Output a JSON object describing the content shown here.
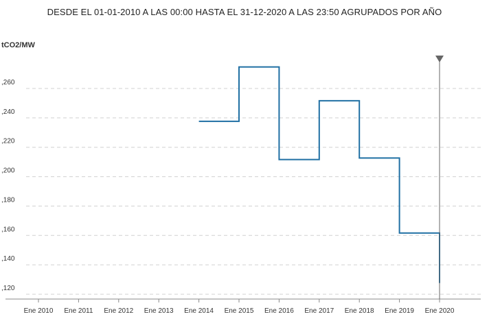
{
  "header": {
    "title": "DESDE EL 01-01-2010 A LAS 00:00 HASTA EL 31-12-2020 A LAS 23:50 AGRUPADOS POR AÑO"
  },
  "chart_data": {
    "type": "line",
    "step": true,
    "title": "DESDE EL 01-01-2010 A LAS 00:00 HASTA EL 31-12-2020 A LAS 23:50 AGRUPADOS POR AÑO",
    "ylabel": "tCO2/MW",
    "xlabel": "",
    "x": [
      "2014",
      "2015",
      "2016",
      "2017",
      "2018",
      "2019",
      "2020"
    ],
    "series": [
      {
        "values": [
          0.233,
          0.27,
          0.207,
          0.247,
          0.208,
          0.157,
          0.123
        ]
      }
    ],
    "ylim": [
      0.115,
      0.275
    ],
    "yticks": [
      0.12,
      0.14,
      0.16,
      0.18,
      0.2,
      0.22,
      0.24,
      0.26
    ],
    "ytick_labels": [
      ",120",
      ",140",
      ",160",
      ",180",
      ",200",
      ",220",
      ",240",
      ",260"
    ],
    "xtick_labels": [
      "Ene 2010",
      "Ene 2011",
      "Ene 2012",
      "Ene 2013",
      "Ene 2014",
      "Ene 2015",
      "Ene 2016",
      "Ene 2017",
      "Ene 2018",
      "Ene 2019",
      "Ene 2020"
    ],
    "grid": true,
    "line_color": "#1f6fa3",
    "cursor": "Ene 2020"
  }
}
